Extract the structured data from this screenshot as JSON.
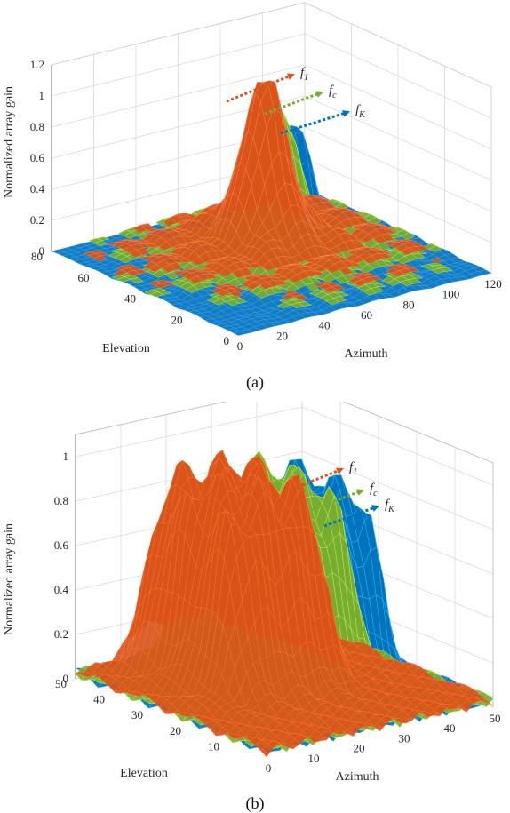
{
  "chart_data": [
    {
      "type": "surface",
      "caption": "(a)",
      "zlabel": "Normalized array gain",
      "xlabel": "Azimuth",
      "ylabel": "Elevation",
      "zticks": [
        "0",
        "0.2",
        "0.4",
        "0.6",
        "0.8",
        "1",
        "1.2"
      ],
      "xticks": [
        "0",
        "20",
        "40",
        "60",
        "80",
        "100",
        "120"
      ],
      "yticks": [
        "0",
        "20",
        "40",
        "60",
        "80"
      ],
      "zlim": [
        0,
        1.2
      ],
      "xlim": [
        0,
        120
      ],
      "ylim": [
        0,
        80
      ],
      "grid": true,
      "series": [
        {
          "name": "f_1",
          "sub": "1",
          "color": "#d95319",
          "peak_gain": 1.0
        },
        {
          "name": "f_c",
          "sub": "c",
          "color": "#77ac30",
          "peak_gain": 0.93
        },
        {
          "name": "f_K",
          "sub": "K",
          "color": "#0072bd",
          "peak_gain": 0.88
        }
      ]
    },
    {
      "type": "surface",
      "caption": "(b)",
      "zlabel": "Normalized array gain",
      "xlabel": "Azimuth",
      "ylabel": "Elevation",
      "zticks": [
        "0",
        "0.2",
        "0.4",
        "0.6",
        "0.8",
        "1"
      ],
      "xticks": [
        "0",
        "10",
        "20",
        "30",
        "40",
        "50"
      ],
      "yticks": [
        "10",
        "20",
        "30",
        "40",
        "50"
      ],
      "zlim": [
        0,
        1.1
      ],
      "xlim": [
        0,
        50
      ],
      "ylim": [
        0,
        50
      ],
      "grid": true,
      "series": [
        {
          "name": "f_1",
          "sub": "1",
          "color": "#d95319",
          "peak_gain": 1.0
        },
        {
          "name": "f_c",
          "sub": "c",
          "color": "#77ac30",
          "peak_gain": 1.0
        },
        {
          "name": "f_K",
          "sub": "K",
          "color": "#0072bd",
          "peak_gain": 1.0
        }
      ]
    }
  ]
}
